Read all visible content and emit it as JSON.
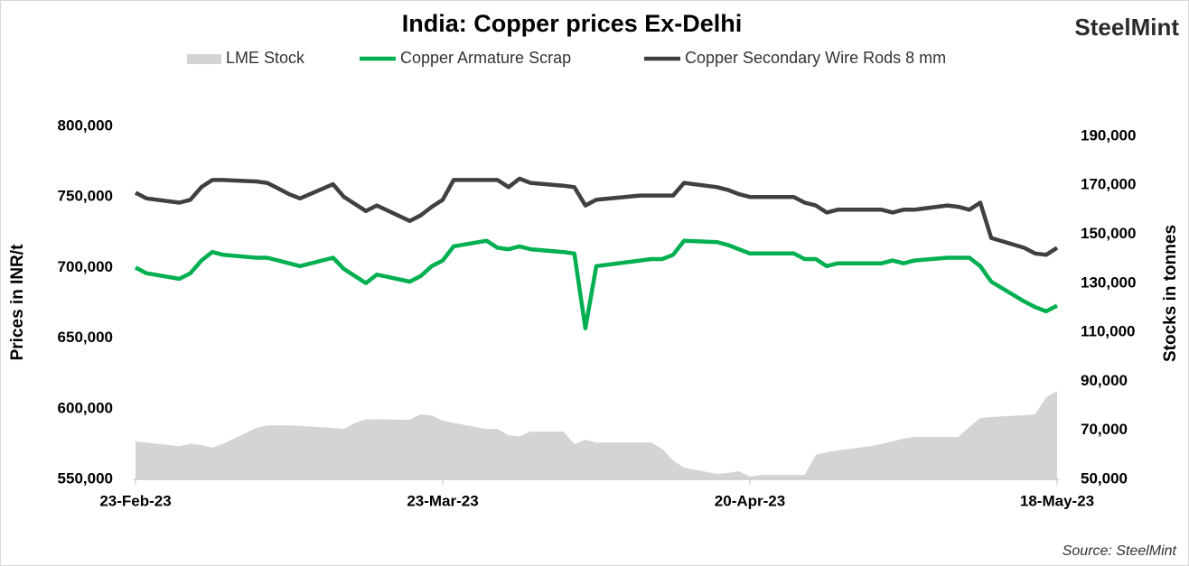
{
  "chart_data": {
    "type": "line",
    "title": "India: Copper prices Ex-Delhi",
    "logo": "SteelMint",
    "source": "Source: SteelMint",
    "y_label": "Prices in INR/t",
    "y2_label": "Stocks in tonnes",
    "x": [
      "2023-02-23",
      "2023-02-24",
      "2023-02-27",
      "2023-02-28",
      "2023-03-01",
      "2023-03-02",
      "2023-03-03",
      "2023-03-06",
      "2023-03-07",
      "2023-03-08",
      "2023-03-09",
      "2023-03-10",
      "2023-03-13",
      "2023-03-14",
      "2023-03-15",
      "2023-03-16",
      "2023-03-17",
      "2023-03-20",
      "2023-03-21",
      "2023-03-22",
      "2023-03-23",
      "2023-03-24",
      "2023-03-27",
      "2023-03-28",
      "2023-03-29",
      "2023-03-30",
      "2023-03-31",
      "2023-04-03",
      "2023-04-04",
      "2023-04-05",
      "2023-04-06",
      "2023-04-10",
      "2023-04-11",
      "2023-04-12",
      "2023-04-13",
      "2023-04-14",
      "2023-04-17",
      "2023-04-18",
      "2023-04-19",
      "2023-04-20",
      "2023-04-21",
      "2023-04-24",
      "2023-04-25",
      "2023-04-26",
      "2023-04-27",
      "2023-04-28",
      "2023-05-01",
      "2023-05-02",
      "2023-05-03",
      "2023-05-04",
      "2023-05-05",
      "2023-05-08",
      "2023-05-09",
      "2023-05-10",
      "2023-05-11",
      "2023-05-12",
      "2023-05-15",
      "2023-05-16",
      "2023-05-17",
      "2023-05-18"
    ],
    "xlim": [
      "2023-02-23",
      "2023-05-18"
    ],
    "xticks": [
      {
        "value": "2023-02-23",
        "label": "23-Feb-23"
      },
      {
        "value": "2023-03-23",
        "label": "23-Mar-23"
      },
      {
        "value": "2023-04-20",
        "label": "20-Apr-23"
      },
      {
        "value": "2023-05-18",
        "label": "18-May-23"
      }
    ],
    "ylim": [
      550000,
      800000
    ],
    "yticks": [
      {
        "value": 550000,
        "label": "550,000"
      },
      {
        "value": 600000,
        "label": "600,000"
      },
      {
        "value": 650000,
        "label": "650,000"
      },
      {
        "value": 700000,
        "label": "700,000"
      },
      {
        "value": 750000,
        "label": "750,000"
      },
      {
        "value": 800000,
        "label": "800,000"
      }
    ],
    "y2lim": [
      50000,
      194000
    ],
    "y2ticks": [
      {
        "value": 50000,
        "label": "50,000"
      },
      {
        "value": 70000,
        "label": "70,000"
      },
      {
        "value": 90000,
        "label": "90,000"
      },
      {
        "value": 110000,
        "label": "110,000"
      },
      {
        "value": 130000,
        "label": "130,000"
      },
      {
        "value": 150000,
        "label": "150,000"
      },
      {
        "value": 170000,
        "label": "170,000"
      },
      {
        "value": 190000,
        "label": "190,000"
      }
    ],
    "series": [
      {
        "name": "LME Stock",
        "type": "area",
        "axis": "y2",
        "color": "#d4d4d4",
        "values": [
          65500,
          65000,
          63500,
          64500,
          64000,
          63000,
          64500,
          71000,
          72000,
          72000,
          72000,
          71800,
          71000,
          70500,
          73000,
          74500,
          74500,
          74300,
          76500,
          76000,
          74000,
          73000,
          70500,
          70500,
          68000,
          67500,
          69500,
          69500,
          64400,
          66200,
          65000,
          65000,
          65000,
          62500,
          57700,
          54800,
          52200,
          52600,
          53300,
          51100,
          51800,
          51800,
          51800,
          60000,
          61000,
          61800,
          63600,
          64400,
          65500,
          66600,
          67300,
          67300,
          67300,
          71400,
          75000,
          75400,
          76200,
          76500,
          83500,
          86000
        ]
      },
      {
        "name": "Copper Armature Scrap",
        "type": "line",
        "color": "#00b050",
        "values": [
          700000,
          696000,
          692000,
          696000,
          705000,
          711000,
          709000,
          707000,
          707000,
          705000,
          703000,
          701000,
          707000,
          699000,
          694000,
          689000,
          695000,
          690000,
          694000,
          701000,
          705000,
          715000,
          719000,
          714000,
          713000,
          715000,
          713000,
          711000,
          710000,
          657000,
          701000,
          705000,
          706000,
          706000,
          709000,
          719000,
          718000,
          716000,
          713000,
          710000,
          710000,
          710000,
          706000,
          706000,
          701000,
          703000,
          703000,
          703000,
          705000,
          703000,
          705000,
          707000,
          707000,
          707000,
          701000,
          690000,
          676000,
          672000,
          669000,
          673000
        ]
      },
      {
        "name": "Copper Secondary Wire Rods 8 mm",
        "type": "line",
        "color": "#404040",
        "values": [
          753000,
          749000,
          746000,
          748000,
          757000,
          762000,
          762000,
          761000,
          760000,
          756000,
          752000,
          749000,
          759000,
          750000,
          745000,
          740000,
          744000,
          733000,
          737000,
          743000,
          748000,
          762000,
          762000,
          762000,
          757000,
          763000,
          760000,
          758000,
          757000,
          744000,
          748000,
          751000,
          751000,
          751000,
          751000,
          760000,
          757000,
          755000,
          752000,
          750000,
          750000,
          750000,
          746000,
          744000,
          739000,
          741000,
          741000,
          741000,
          739000,
          741000,
          741000,
          744000,
          743000,
          741000,
          746000,
          721000,
          714000,
          710000,
          709000,
          714000
        ]
      }
    ]
  }
}
